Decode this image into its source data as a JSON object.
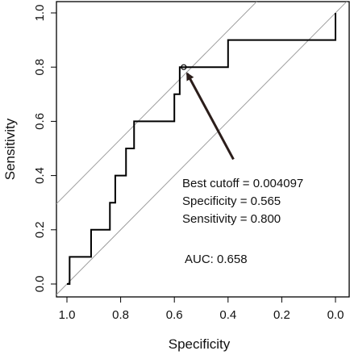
{
  "chart_data": {
    "type": "line",
    "title": "",
    "xlabel": "Specificity",
    "ylabel": "Sensitivity",
    "xlim": [
      1.0,
      0.0
    ],
    "ylim": [
      0.0,
      1.0
    ],
    "x_ticks": [
      "1.0",
      "0.8",
      "0.6",
      "0.4",
      "0.2",
      "0.0"
    ],
    "y_ticks": [
      "0.0",
      "0.2",
      "0.4",
      "0.6",
      "0.8",
      "1.0"
    ],
    "grid": false,
    "legend": "none",
    "series": [
      {
        "specificity": [
          1.0,
          0.99,
          0.99,
          0.91,
          0.91,
          0.84,
          0.84,
          0.82,
          0.82,
          0.78,
          0.78,
          0.75,
          0.75,
          0.7,
          0.7,
          0.6,
          0.6,
          0.58,
          0.58,
          0.565,
          0.565,
          0.4,
          0.4,
          0.0,
          0.0
        ],
        "sensitivity": [
          0.0,
          0.0,
          0.1,
          0.1,
          0.2,
          0.2,
          0.3,
          0.3,
          0.4,
          0.4,
          0.5,
          0.5,
          0.6,
          0.6,
          0.6,
          0.6,
          0.7,
          0.7,
          0.8,
          0.8,
          0.8,
          0.8,
          0.9,
          0.9,
          1.0
        ],
        "color": "#000000"
      }
    ],
    "reference_lines": [
      {
        "x1": 1.0,
        "y1": 0.0,
        "x2": 0.0,
        "y2": 1.0,
        "color": "#9e9e9e"
      },
      {
        "x1": 1.0,
        "y1": 0.335,
        "x2": 0.335,
        "y2": 1.0,
        "color": "#9e9e9e"
      }
    ],
    "best_point": {
      "specificity": 0.565,
      "sensitivity": 0.8
    },
    "annotation": {
      "cutoff": "Best cutoff = 0.004097",
      "specificity": "Specificity = 0.565",
      "sensitivity": "Sensitivity = 0.800",
      "arrow_tail": {
        "specificity": 0.38,
        "sensitivity": 0.46
      }
    },
    "auc_text": "AUC: 0.658"
  }
}
